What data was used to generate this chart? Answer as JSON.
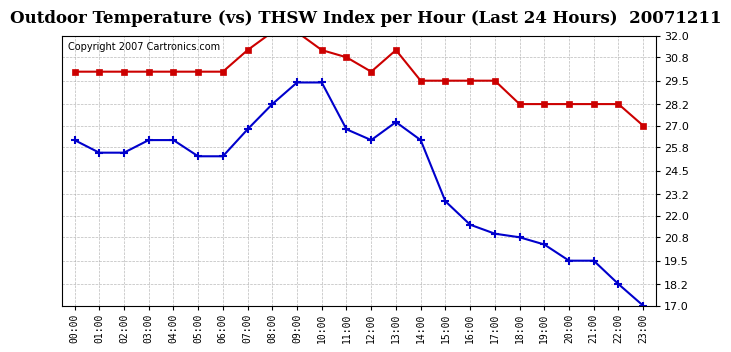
{
  "title": "Outdoor Temperature (vs) THSW Index per Hour (Last 24 Hours)  20071211",
  "copyright": "Copyright 2007 Cartronics.com",
  "hours": [
    "00:00",
    "01:00",
    "02:00",
    "03:00",
    "04:00",
    "05:00",
    "06:00",
    "07:00",
    "08:00",
    "09:00",
    "10:00",
    "11:00",
    "12:00",
    "13:00",
    "14:00",
    "15:00",
    "16:00",
    "17:00",
    "18:00",
    "19:00",
    "20:00",
    "21:00",
    "22:00",
    "23:00"
  ],
  "red_data": [
    30.0,
    30.0,
    30.0,
    30.0,
    30.0,
    30.0,
    30.0,
    31.2,
    32.2,
    32.2,
    31.2,
    30.8,
    30.0,
    31.2,
    29.5,
    29.5,
    29.5,
    29.5,
    28.2,
    28.2,
    28.2,
    28.2,
    28.2,
    27.0
  ],
  "blue_data": [
    26.2,
    25.5,
    25.5,
    26.2,
    26.2,
    25.3,
    25.3,
    26.8,
    28.2,
    29.4,
    29.4,
    26.8,
    26.2,
    27.2,
    26.2,
    22.8,
    21.5,
    21.0,
    20.8,
    20.4,
    19.5,
    19.5,
    18.2,
    17.0
  ],
  "ylim": [
    17.0,
    32.0
  ],
  "yticks": [
    17.0,
    18.2,
    19.5,
    20.8,
    22.0,
    23.2,
    24.5,
    25.8,
    27.0,
    28.2,
    29.5,
    30.8,
    32.0
  ],
  "red_color": "#cc0000",
  "blue_color": "#0000cc",
  "bg_color": "#ffffff",
  "grid_color": "#aaaaaa",
  "title_fontsize": 12,
  "copyright_fontsize": 7
}
